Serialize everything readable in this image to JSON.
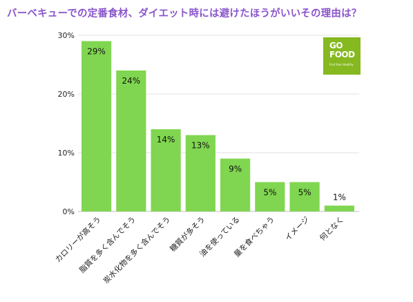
{
  "title": "バーベキューでの定番食材、ダイエット時には避けたほうがいいその理由は？",
  "logo": {
    "line1": "GO",
    "line2": "FOOD",
    "tagline": "Find Your Healthy"
  },
  "colors": {
    "bar": "#80d650",
    "title": "#8a55cc",
    "grid": "#e2e2e2",
    "logo": "#86b820"
  },
  "chart_data": {
    "type": "bar",
    "categories": [
      "カロリーが高そう",
      "脂質を多く含んでそう",
      "炭水化物を多く含んでそう",
      "糖質が多そう",
      "油を使っている",
      "量を食べちゃう",
      "イメージ",
      "何となく"
    ],
    "values": [
      29,
      24,
      14,
      13,
      9,
      5,
      5,
      1
    ],
    "value_labels": [
      "29%",
      "24%",
      "14%",
      "13%",
      "9%",
      "5%",
      "5%",
      "1%"
    ],
    "yticks": [
      "0%",
      "10%",
      "20%",
      "30%"
    ],
    "ylim": [
      0,
      30
    ],
    "grid": true
  }
}
